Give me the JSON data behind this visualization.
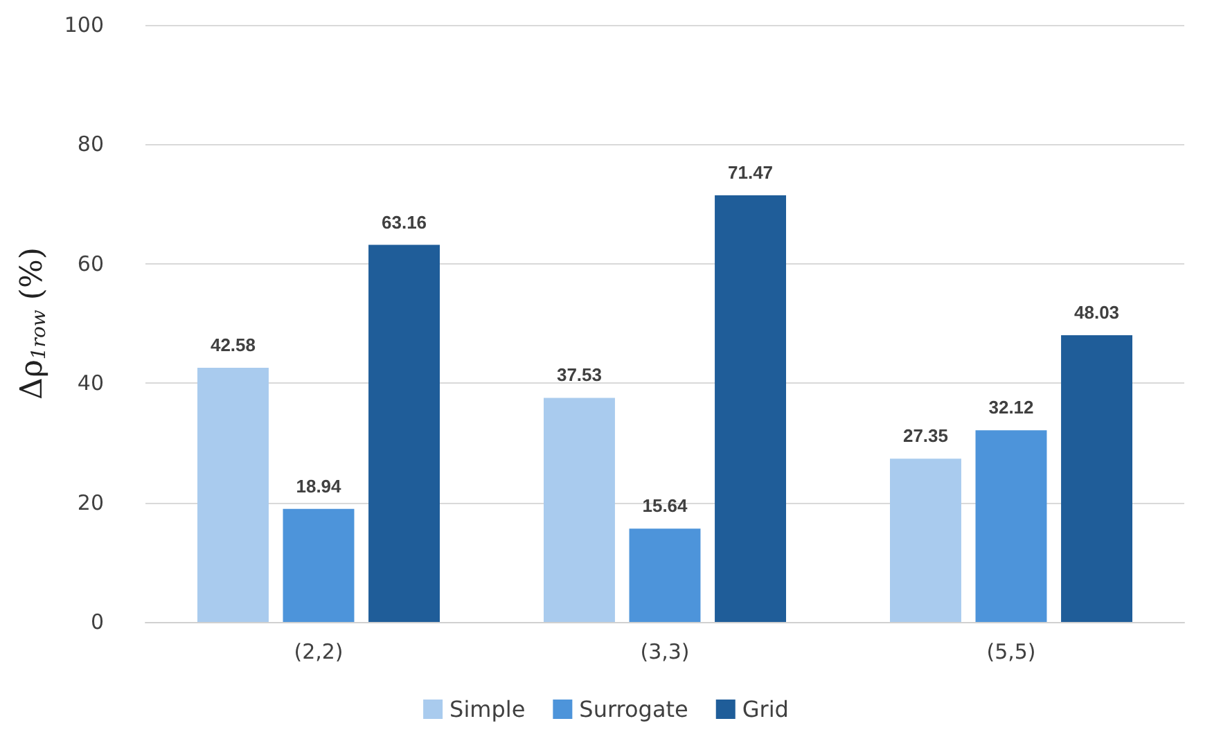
{
  "chart_data": {
    "type": "bar",
    "ylabel": "Δρ$_{1row}$ (%)",
    "categories": [
      "(2,2)",
      "(3,3)",
      "(5,5)"
    ],
    "series": [
      {
        "name": "Simple",
        "color": "#a9cbee",
        "values": [
          42.58,
          37.53,
          27.35
        ]
      },
      {
        "name": "Surrogate",
        "color": "#4d94da",
        "values": [
          18.94,
          15.64,
          32.12
        ]
      },
      {
        "name": "Grid",
        "color": "#1f5d99",
        "values": [
          63.16,
          71.47,
          48.03
        ]
      }
    ],
    "ylim": [
      0,
      100
    ],
    "yticks": [
      0,
      20,
      40,
      60,
      80,
      100
    ],
    "grid": "y",
    "legend": "bottom",
    "data_labels": true
  }
}
